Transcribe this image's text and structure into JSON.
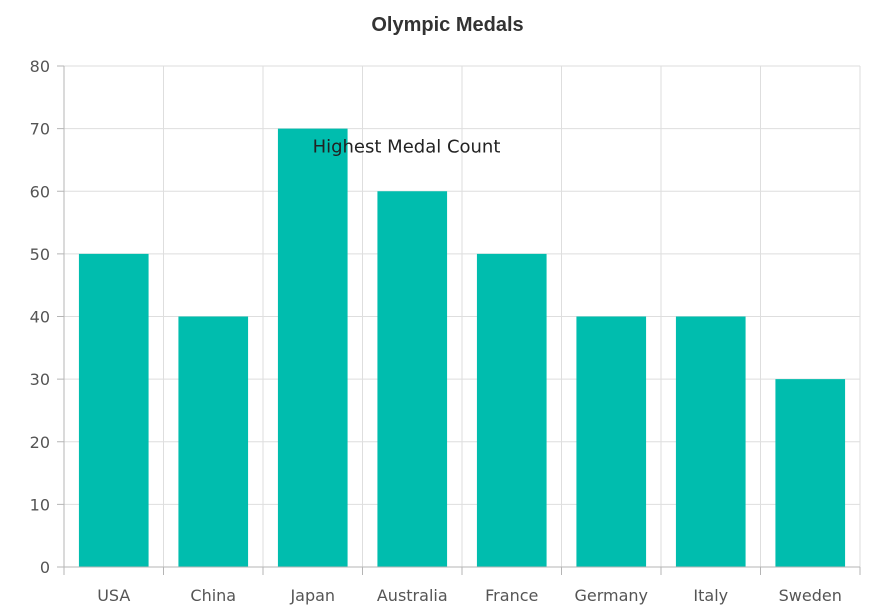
{
  "chart_data": {
    "type": "bar",
    "title": "Olympic Medals",
    "categories": [
      "USA",
      "China",
      "Japan",
      "Australia",
      "France",
      "Germany",
      "Italy",
      "Sweden"
    ],
    "values": [
      50,
      40,
      70,
      60,
      50,
      40,
      40,
      30
    ],
    "ylim": [
      0,
      80
    ],
    "yticks": [
      0,
      10,
      20,
      30,
      40,
      50,
      60,
      70,
      80
    ],
    "xlabel": "",
    "ylabel": "",
    "grid": true,
    "bar_color": "#00BDAE",
    "annotation": {
      "text": "Highest Medal Count",
      "category": "Japan",
      "value": 70
    }
  }
}
